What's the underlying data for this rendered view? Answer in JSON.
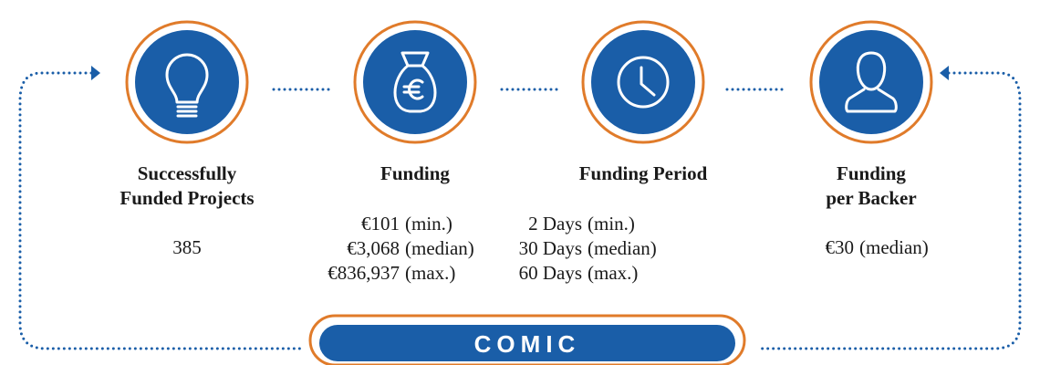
{
  "items": [
    {
      "title": [
        "Successfully",
        "Funded Projects"
      ],
      "values": [
        {
          "amount": "385"
        }
      ]
    },
    {
      "title": [
        "Funding"
      ],
      "values": [
        {
          "amount": "€101",
          "qualifier": "(min.)"
        },
        {
          "amount": "€3,068",
          "qualifier": "(median)"
        },
        {
          "amount": "€836,937",
          "qualifier": "(max.)"
        }
      ]
    },
    {
      "title": [
        "Funding Period"
      ],
      "values": [
        {
          "amount": "2 Days",
          "qualifier": "(min.)"
        },
        {
          "amount": "30 Days",
          "qualifier": "(median)"
        },
        {
          "amount": "60 Days",
          "qualifier": "(max.)"
        }
      ]
    },
    {
      "title": [
        "Funding",
        "per Backer"
      ],
      "values": [
        {
          "amount": "€30",
          "qualifier": "(median)"
        }
      ]
    }
  ],
  "banner": "COMIC"
}
